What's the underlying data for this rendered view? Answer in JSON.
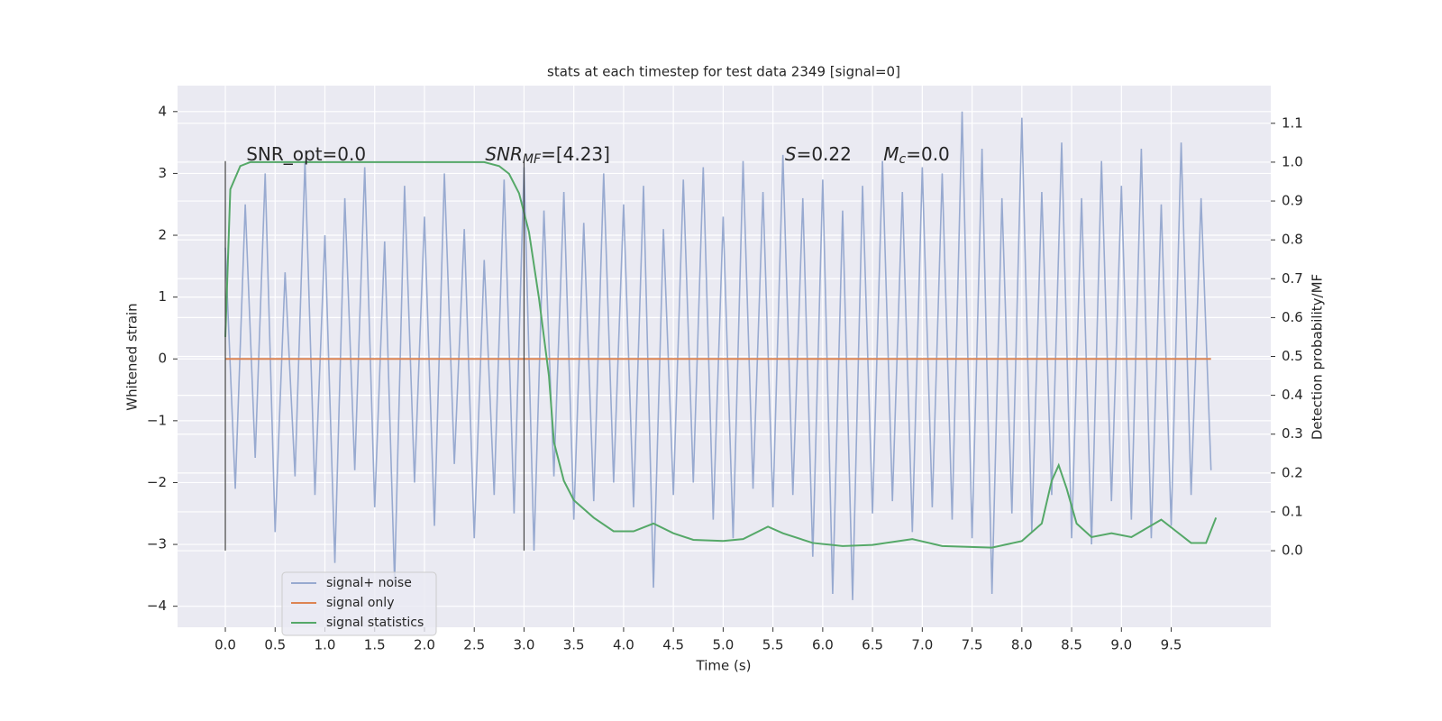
{
  "chart_data": {
    "type": "line",
    "title": "stats at each timestep for test data 2349 [signal=0]",
    "x_label": "Time (s)",
    "y_label": "Whitened strain",
    "y2_label": "Detection probability/MF",
    "xlim": [
      -0.48,
      10.5
    ],
    "ylim": [
      -4.34,
      4.42
    ],
    "y2lim": [
      -0.197,
      1.197
    ],
    "xticks": [
      {
        "value": 0,
        "label": "0.0"
      },
      {
        "value": 0.5,
        "label": "0.5"
      },
      {
        "value": 1,
        "label": "1.0"
      },
      {
        "value": 1.5,
        "label": "1.5"
      },
      {
        "value": 2,
        "label": "2.0"
      },
      {
        "value": 2.5,
        "label": "2.5"
      },
      {
        "value": 3,
        "label": "3.0"
      },
      {
        "value": 3.5,
        "label": "3.5"
      },
      {
        "value": 4,
        "label": "4.0"
      },
      {
        "value": 4.5,
        "label": "4.5"
      },
      {
        "value": 5,
        "label": "5.0"
      },
      {
        "value": 5.5,
        "label": "5.5"
      },
      {
        "value": 6,
        "label": "6.0"
      },
      {
        "value": 6.5,
        "label": "6.5"
      },
      {
        "value": 7,
        "label": "7.0"
      },
      {
        "value": 7.5,
        "label": "7.5"
      },
      {
        "value": 8,
        "label": "8.0"
      },
      {
        "value": 8.5,
        "label": "8.5"
      },
      {
        "value": 9,
        "label": "9.0"
      },
      {
        "value": 9.5,
        "label": "9.5"
      }
    ],
    "yticks": [
      {
        "value": -4,
        "label": "−4"
      },
      {
        "value": -3,
        "label": "−3"
      },
      {
        "value": -2,
        "label": "−2"
      },
      {
        "value": -1,
        "label": "−1"
      },
      0,
      1,
      2,
      3,
      4
    ],
    "y2ticks": [
      {
        "value": 0,
        "label": "0.0"
      },
      {
        "value": 0.1,
        "label": "0.1"
      },
      {
        "value": 0.2,
        "label": "0.2"
      },
      {
        "value": 0.3,
        "label": "0.3"
      },
      {
        "value": 0.4,
        "label": "0.4"
      },
      {
        "value": 0.5,
        "label": "0.5"
      },
      {
        "value": 0.6,
        "label": "0.6"
      },
      {
        "value": 0.7,
        "label": "0.7"
      },
      {
        "value": 0.8,
        "label": "0.8"
      },
      {
        "value": 0.9,
        "label": "0.9"
      },
      {
        "value": 1,
        "label": "1.0"
      },
      {
        "value": 1.1,
        "label": "1.1"
      }
    ],
    "grid": true,
    "legend": "lower left",
    "x": [
      0,
      0.1,
      0.2,
      0.3,
      0.4,
      0.5,
      0.6,
      0.7,
      0.8,
      0.9,
      1,
      1.1,
      1.2,
      1.3,
      1.4,
      1.5,
      1.6,
      1.7,
      1.8,
      1.9,
      2,
      2.1,
      2.2,
      2.3,
      2.4,
      2.5,
      2.6,
      2.7,
      2.8,
      2.9,
      3,
      3.1,
      3.2,
      3.3,
      3.4,
      3.5,
      3.6,
      3.7,
      3.8,
      3.9,
      4,
      4.1,
      4.2,
      4.3,
      4.4,
      4.5,
      4.6,
      4.7,
      4.8,
      4.9,
      5,
      5.1,
      5.2,
      5.3,
      5.4,
      5.5,
      5.6,
      5.7,
      5.8,
      5.9,
      6,
      6.1,
      6.2,
      6.3,
      6.4,
      6.5,
      6.6,
      6.7,
      6.8,
      6.9,
      7,
      7.1,
      7.2,
      7.3,
      7.4,
      7.5,
      7.6,
      7.7,
      7.8,
      7.9,
      8,
      8.1,
      8.2,
      8.3,
      8.4,
      8.5,
      8.6,
      8.7,
      8.8,
      8.9,
      9,
      9.1,
      9.2,
      9.3,
      9.4,
      9.5,
      9.6,
      9.7,
      9.8,
      9.9
    ],
    "series": [
      {
        "name": "signal+ noise",
        "color": "#98aad0",
        "values": [
          1.8,
          -2.1,
          2.5,
          -1.6,
          3.0,
          -2.8,
          1.4,
          -1.9,
          3.2,
          -2.2,
          2.0,
          -3.3,
          2.6,
          -1.8,
          3.1,
          -2.4,
          1.9,
          -3.6,
          2.8,
          -2.0,
          2.3,
          -2.7,
          3.0,
          -1.7,
          2.1,
          -2.9,
          1.6,
          -2.2,
          2.9,
          -2.5,
          3.1,
          -3.1,
          2.4,
          -1.9,
          2.7,
          -2.6,
          2.2,
          -2.3,
          3.0,
          -2.0,
          2.5,
          -2.4,
          2.8,
          -3.7,
          2.1,
          -2.2,
          2.9,
          -2.0,
          3.1,
          -2.6,
          2.3,
          -2.9,
          3.2,
          -2.1,
          2.7,
          -2.4,
          3.3,
          -2.2,
          2.6,
          -3.2,
          2.9,
          -3.8,
          2.4,
          -3.9,
          2.8,
          -2.5,
          3.2,
          -2.3,
          2.7,
          -2.8,
          3.1,
          -2.4,
          3.0,
          -2.6,
          4.0,
          -2.9,
          3.4,
          -3.8,
          2.6,
          -2.5,
          3.9,
          -2.8,
          2.7,
          -2.2,
          3.5,
          -2.9,
          2.6,
          -3.0,
          3.2,
          -2.3,
          2.8,
          -2.6,
          3.4,
          -2.9,
          2.5,
          -2.7,
          3.5,
          -2.2,
          2.6,
          -1.8
        ]
      },
      {
        "name": "signal only",
        "color": "#dd8452",
        "values": [
          0,
          0,
          0,
          0,
          0,
          0,
          0,
          0,
          0,
          0,
          0,
          0,
          0,
          0,
          0,
          0,
          0,
          0,
          0,
          0,
          0,
          0,
          0,
          0,
          0,
          0,
          0,
          0,
          0,
          0,
          0,
          0,
          0,
          0,
          0,
          0,
          0,
          0,
          0,
          0,
          0,
          0,
          0,
          0,
          0,
          0,
          0,
          0,
          0,
          0,
          0,
          0,
          0,
          0,
          0,
          0,
          0,
          0,
          0,
          0,
          0,
          0,
          0,
          0,
          0,
          0,
          0,
          0,
          0,
          0,
          0,
          0,
          0,
          0,
          0,
          0,
          0,
          0,
          0,
          0,
          0,
          0,
          0,
          0,
          0,
          0,
          0,
          0,
          0,
          0,
          0,
          0,
          0,
          0,
          0,
          0,
          0,
          0,
          0,
          0
        ]
      },
      {
        "name": "signal statistics",
        "color": "#55a868",
        "axis": "y2",
        "x": [
          0,
          0.05,
          0.15,
          0.25,
          0.5,
          1,
          2,
          2.6,
          2.75,
          2.85,
          2.95,
          3.05,
          3.15,
          3.25,
          3.3,
          3.4,
          3.5,
          3.7,
          3.9,
          4.1,
          4.3,
          4.5,
          4.7,
          5.0,
          5.2,
          5.45,
          5.6,
          5.9,
          6.2,
          6.5,
          6.9,
          7.2,
          7.7,
          8.0,
          8.2,
          8.3,
          8.37,
          8.45,
          8.55,
          8.7,
          8.9,
          9.1,
          9.4,
          9.55,
          9.7,
          9.85,
          9.95
        ],
        "values": [
          0.55,
          0.93,
          0.99,
          1.0,
          1.0,
          1.0,
          1.0,
          1.0,
          0.99,
          0.97,
          0.92,
          0.82,
          0.65,
          0.45,
          0.28,
          0.18,
          0.13,
          0.085,
          0.05,
          0.05,
          0.07,
          0.045,
          0.028,
          0.025,
          0.03,
          0.062,
          0.045,
          0.02,
          0.012,
          0.015,
          0.03,
          0.012,
          0.008,
          0.025,
          0.07,
          0.18,
          0.22,
          0.16,
          0.07,
          0.035,
          0.045,
          0.035,
          0.08,
          0.05,
          0.02,
          0.02,
          0.085
        ]
      }
    ],
    "vlines": [
      {
        "x": 0,
        "ymin": -3.1,
        "ymax": 3.2
      },
      {
        "x": 3,
        "ymin": -3.1,
        "ymax": 3.2
      }
    ],
    "annotations": [
      {
        "x": 0.21,
        "y": 3.3,
        "parts": [
          {
            "text": "SNR_opt=0.0"
          }
        ]
      },
      {
        "x": 2.61,
        "y": 3.3,
        "parts": [
          {
            "text": "SNR",
            "style": "italic"
          },
          {
            "text": "MF",
            "style": "italic-sub"
          },
          {
            "text": "=[4.23]"
          }
        ]
      },
      {
        "x": 5.62,
        "y": 3.3,
        "parts": [
          {
            "text": "S",
            "style": "italic"
          },
          {
            "text": "=0.22"
          }
        ]
      },
      {
        "x": 6.61,
        "y": 3.3,
        "parts": [
          {
            "text": "M",
            "style": "italic"
          },
          {
            "text": "c",
            "style": "italic-sub"
          },
          {
            "text": "=0.0"
          }
        ]
      }
    ]
  }
}
